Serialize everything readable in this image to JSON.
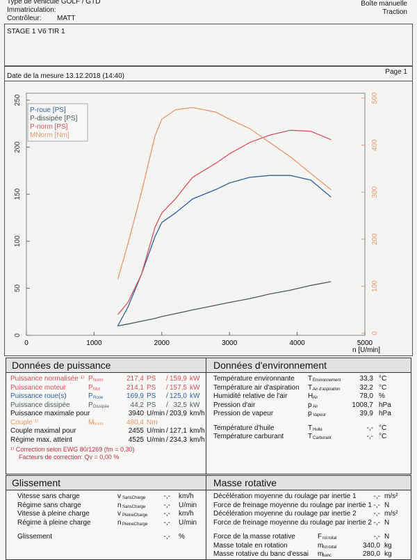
{
  "header": {
    "vehicle": "Type de véhicule GOLF / GTD",
    "plate": "Immatriculation:",
    "controller_label": "Contrôleur:",
    "controller": "MATT",
    "gearbox": "Boîte manuelle",
    "drive": "Traction",
    "run": "STAGE 1 V6 TIR 1",
    "date": "Date de la mesure 13.12.2018 (14:40)",
    "page": "Page 1"
  },
  "chart_data": {
    "type": "line",
    "x_label": "n [U/min]",
    "x": [
      1350,
      1500,
      1700,
      1900,
      2000,
      2200,
      2455,
      2800,
      3000,
      3300,
      3600,
      3900,
      4200,
      4500
    ],
    "series": [
      {
        "name": "P-roue [PS]",
        "color": "#2d5fa0",
        "values": [
          10,
          30,
          65,
          105,
          120,
          130,
          145,
          155,
          162,
          168,
          170,
          170,
          165,
          147
        ]
      },
      {
        "name": "P-dissipée [PS]",
        "color": "#4a5a5a",
        "values": [
          10,
          12,
          15,
          18,
          20,
          23,
          27,
          32,
          35,
          39,
          44,
          48,
          53,
          57
        ]
      },
      {
        "name": "P-norm [PS]",
        "color": "#d9505a",
        "values": [
          22,
          35,
          65,
          115,
          130,
          145,
          168,
          183,
          193,
          205,
          213,
          218,
          217,
          208
        ]
      },
      {
        "name": "MNorm [Nm]",
        "color": "#e8956a",
        "axis": "y2",
        "values": [
          115,
          190,
          300,
          420,
          455,
          475,
          480,
          470,
          455,
          435,
          405,
          375,
          340,
          305
        ]
      }
    ],
    "xlim": [
      0,
      5000
    ],
    "xticks": [
      0,
      1000,
      2000,
      3000,
      4000,
      5000
    ],
    "ylim": [
      0,
      250
    ],
    "yticks": [
      0,
      50,
      100,
      150,
      200,
      250
    ],
    "y2lim": [
      0,
      500
    ],
    "y2ticks": [
      0,
      100,
      200,
      300,
      400,
      500
    ]
  },
  "power": {
    "title": "Données de puissance",
    "rows": [
      {
        "label": "Puissance normalisée ¹⁾",
        "sym": "P",
        "sub": "Norm",
        "v1": "217,4",
        "u1": "PS",
        "sep": "/",
        "v2": "159,9",
        "u2": "kW",
        "color": "#d9505a"
      },
      {
        "label": "Puissance moteur",
        "sym": "P",
        "sub": "Mot",
        "v1": "214,1",
        "u1": "PS",
        "sep": "/",
        "v2": "157,5",
        "u2": "kW",
        "color": "#d9505a"
      },
      {
        "label": "Puissance roue(s)",
        "sym": "P",
        "sub": "Roue",
        "v1": "169,9",
        "u1": "PS",
        "sep": "/",
        "v2": "125,0",
        "u2": "kW",
        "color": "#2d5fa0"
      },
      {
        "label": "Puissance dissipée",
        "sym": "P",
        "sub": "Dissipée",
        "v1": "44,2",
        "u1": "PS",
        "sep": "/",
        "v2": "32,5",
        "u2": "kW",
        "color": "#4a5a5a"
      },
      {
        "label": "Puissance maximale pour",
        "v1": "3940",
        "u1": "U/min",
        "sep": "/",
        "v2": "203,9",
        "u2": "km/h",
        "color": "#111"
      },
      {
        "label": "Couple ¹⁾",
        "sym": "M",
        "sub": "Norm",
        "v1": "480,4",
        "u1": "Nm",
        "color": "#e8956a"
      },
      {
        "label": "Couple maximal pour",
        "v1": "2455",
        "u1": "U/min",
        "sep": "/",
        "v2": "127,1",
        "u2": "km/h",
        "color": "#111"
      },
      {
        "label": "Régime max. atteint",
        "v1": "4525",
        "u1": "U/min",
        "sep": "/",
        "v2": "234,3",
        "u2": "km/h",
        "color": "#111"
      }
    ],
    "note1": "¹⁾ Correction selon EWG 80/1269 (fm = 0,30)",
    "note2": "Facteurs de correction: Qv = 0,00 %"
  },
  "environment": {
    "title": "Données d'environnement",
    "rows": [
      {
        "label": "Température environnante",
        "sym": "T",
        "sub": "Environnement",
        "v1": "33,3",
        "u1": "°C"
      },
      {
        "label": "Température air d'aspiration",
        "sym": "T",
        "sub": "Air d'aspiration",
        "v1": "32,2",
        "u1": "°C"
      },
      {
        "label": "Humidité relative de l'air",
        "sym": "H",
        "sub": "Air",
        "v1": "78,0",
        "u1": "%"
      },
      {
        "label": "Pression d'air",
        "sym": "p",
        "sub": "Air",
        "v1": "1008,7",
        "u1": "hPa"
      },
      {
        "label": "Pression de vapeur",
        "sym": "p",
        "sub": "Vapeur",
        "v1": "39,9",
        "u1": "hPa"
      },
      {
        "label": "Température d'huile",
        "sym": "T",
        "sub": "Huile",
        "v1": "-,-",
        "u1": "°C",
        "gap": true
      },
      {
        "label": "Température carburant",
        "sym": "T",
        "sub": "Carburant",
        "v1": "-,-",
        "u1": "°C"
      }
    ]
  },
  "slip": {
    "title": "Glissement",
    "rows": [
      {
        "label": "Vitesse sans charge",
        "sym": "v",
        "sub": "SansCharge",
        "v1": "-,-",
        "u1": "km/h"
      },
      {
        "label": "Régime sans charge",
        "sym": "n",
        "sub": "SansCharge",
        "v1": "-,-",
        "u1": "U/min"
      },
      {
        "label": "Vitesse à pleine charge",
        "sym": "v",
        "sub": "PleineCharge",
        "v1": "-,-",
        "u1": "km/h"
      },
      {
        "label": "Régime à pleine charge",
        "sym": "n",
        "sub": "PleineCharge",
        "v1": "-,-",
        "u1": "U/min"
      },
      {
        "label": "Glissement",
        "v1": "-,-",
        "u1": "%",
        "gap": true
      }
    ]
  },
  "mass": {
    "title": "Masse rotative",
    "rows": [
      {
        "label": "Décélération moyenne du roulage par inertie 1",
        "v1": "-,-",
        "u1": "m/s²"
      },
      {
        "label": "Force de freinage moyenne du roulage par inertie 1",
        "v1": "-,-",
        "u1": "N"
      },
      {
        "label": "Décélération moyenne du roulage par inertie 2",
        "v1": "-,-",
        "u1": "m/s²"
      },
      {
        "label": "Force de freinage moyenne du roulage par inertie 2",
        "v1": "-,-",
        "u1": "N"
      },
      {
        "label": "Force de la masse rotative",
        "sym": "F",
        "sub": "rot-total",
        "v1": "-,-",
        "u1": "N",
        "gap": true
      },
      {
        "label": "Masse totale en rotation",
        "sym": "m",
        "sub": "rot-total",
        "v1": "340,0",
        "u1": "kg"
      },
      {
        "label": "Masse rotative du banc d'essai",
        "sym": "m",
        "sub": "banc",
        "v1": "280,0",
        "u1": "kg"
      }
    ]
  }
}
